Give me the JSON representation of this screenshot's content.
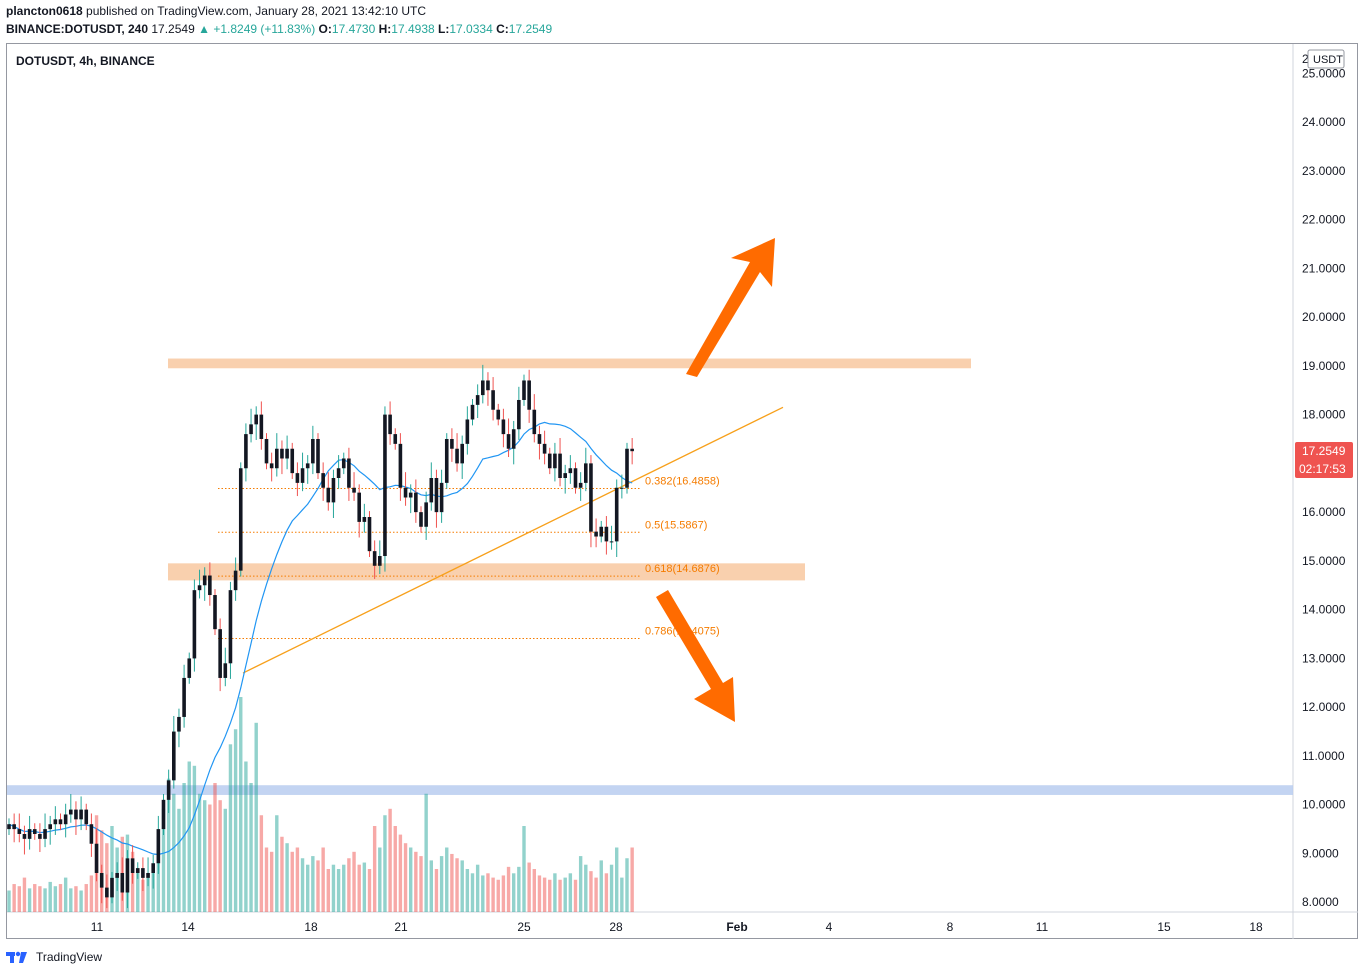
{
  "header": {
    "author": "plancton0618",
    "published_text": "published on TradingView.com, January 28, 2021 13:42:10 UTC",
    "symbol_line": "BINANCE:DOTUSDT, 240",
    "price": "17.2549",
    "change": "+1.8249 (+11.83%)",
    "o_label": "O:",
    "o_value": "17.4730",
    "h_label": "H:",
    "h_value": "17.4938",
    "l_label": "L:",
    "l_value": "17.0334",
    "c_label": "C:",
    "c_value": "17.2549"
  },
  "chart_title": "DOTUSDT, 4h, BINANCE",
  "currency": "USDT",
  "axis_top_partial": "2",
  "price_label": "17.2549",
  "countdown_label": "02:17:53",
  "footer": {
    "brand": "TradingView"
  },
  "colors": {
    "up": "#26a69a",
    "down": "#ef5350",
    "candle_body": "#131722",
    "ma": "#2196f3",
    "zone": "#f8c8a0",
    "blue_zone": "#b8cdf0",
    "trend": "#f7a01b",
    "fib": "#f57c00",
    "arrow": "#ff6b00",
    "price_tag": "#ef5350"
  },
  "chart_data": {
    "type": "candlestick",
    "title": "DOTUSDT, 4h, BINANCE",
    "ylim": [
      7.8,
      25.6
    ],
    "y_ticks": [
      "8.0000",
      "9.0000",
      "10.0000",
      "11.0000",
      "12.0000",
      "13.0000",
      "14.0000",
      "15.0000",
      "16.0000",
      "17.0000",
      "18.0000",
      "19.0000",
      "20.0000",
      "21.0000",
      "22.0000",
      "23.0000",
      "24.0000",
      "25.0000"
    ],
    "x_ticks": [
      "11",
      "14",
      "18",
      "21",
      "25",
      "28",
      "Feb",
      "4",
      "8",
      "11",
      "15",
      "18"
    ],
    "fib_levels": [
      {
        "label": "0.382(16.4858)",
        "value": 16.4858
      },
      {
        "label": "0.5(15.5867)",
        "value": 15.5867
      },
      {
        "label": "0.618(14.6876)",
        "value": 14.6876
      },
      {
        "label": "0.786(13.4075)",
        "value": 13.4075
      }
    ],
    "resistance_zone": [
      18.95,
      19.15
    ],
    "support_zone": [
      14.6,
      14.95
    ],
    "blue_zone": [
      10.2,
      10.4
    ],
    "trendline": {
      "start": [
        12.7
      ],
      "end": [
        18.15
      ]
    },
    "closes": [
      9.6,
      9.5,
      9.4,
      9.3,
      9.5,
      9.4,
      9.3,
      9.5,
      9.6,
      9.7,
      9.6,
      9.8,
      9.9,
      9.7,
      9.9,
      9.6,
      9.2,
      8.6,
      8.3,
      8.1,
      8.5,
      8.6,
      8.2,
      8.9,
      8.6,
      8.7,
      8.5,
      8.6,
      8.8,
      9.5,
      10.1,
      10.5,
      11.5,
      11.8,
      12.6,
      13.0,
      14.4,
      14.5,
      14.7,
      14.3,
      13.6,
      12.6,
      12.9,
      14.4,
      14.8,
      16.9,
      17.6,
      17.8,
      18.0,
      17.5,
      17.0,
      16.9,
      17.3,
      17.1,
      17.3,
      16.8,
      16.6,
      16.9,
      17.0,
      17.5,
      16.8,
      16.5,
      16.2,
      16.7,
      16.9,
      17.1,
      16.5,
      16.4,
      15.8,
      15.9,
      15.2,
      14.9,
      15.1,
      18.0,
      17.6,
      17.4,
      16.5,
      16.3,
      16.4,
      16.0,
      15.7,
      16.2,
      16.7,
      16.0,
      16.6,
      17.5,
      17.3,
      17.0,
      17.4,
      17.9,
      18.2,
      18.4,
      18.7,
      18.5,
      18.1,
      17.9,
      17.6,
      17.3,
      17.7,
      18.3,
      18.7,
      18.1,
      17.6,
      17.4,
      17.2,
      16.9,
      17.2,
      16.7,
      16.8,
      16.9,
      16.5,
      16.6,
      17.0,
      15.6,
      15.5,
      15.7,
      15.4,
      15.4,
      16.5,
      16.5,
      17.3,
      17.25
    ],
    "volumes": [
      0.1,
      0.13,
      0.12,
      0.16,
      0.11,
      0.13,
      0.12,
      0.11,
      0.14,
      0.12,
      0.13,
      0.16,
      0.11,
      0.12,
      0.1,
      0.13,
      0.17,
      0.45,
      0.38,
      0.32,
      0.4,
      0.3,
      0.35,
      0.36,
      0.28,
      0.2,
      0.15,
      0.18,
      0.22,
      0.35,
      0.48,
      0.62,
      0.55,
      0.48,
      0.6,
      0.7,
      0.68,
      0.55,
      0.52,
      0.5,
      0.6,
      0.52,
      0.48,
      0.78,
      0.85,
      1.0,
      0.7,
      0.6,
      0.88,
      0.45,
      0.3,
      0.28,
      0.45,
      0.35,
      0.32,
      0.28,
      0.3,
      0.25,
      0.22,
      0.26,
      0.24,
      0.3,
      0.2,
      0.22,
      0.2,
      0.22,
      0.25,
      0.28,
      0.22,
      0.23,
      0.2,
      0.4,
      0.3,
      0.45,
      0.48,
      0.4,
      0.36,
      0.32,
      0.3,
      0.28,
      0.26,
      0.55,
      0.24,
      0.2,
      0.26,
      0.3,
      0.27,
      0.25,
      0.24,
      0.2,
      0.18,
      0.22,
      0.17,
      0.18,
      0.16,
      0.15,
      0.17,
      0.21,
      0.18,
      0.21,
      0.4,
      0.23,
      0.2,
      0.17,
      0.16,
      0.15,
      0.18,
      0.15,
      0.16,
      0.18,
      0.15,
      0.26,
      0.22,
      0.19,
      0.16,
      0.24,
      0.18,
      0.22,
      0.3,
      0.16,
      0.25,
      0.3
    ]
  }
}
